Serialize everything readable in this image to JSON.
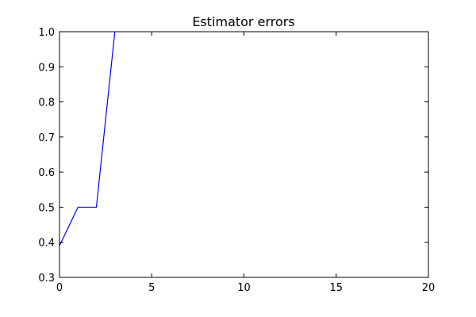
{
  "chart_data": {
    "type": "line",
    "title": "Estimator errors",
    "xlabel": "",
    "ylabel": "",
    "xlim": [
      0,
      20
    ],
    "ylim": [
      0.3,
      1.0
    ],
    "xticks": [
      0,
      5,
      10,
      15,
      20
    ],
    "xtick_labels": [
      "0",
      "5",
      "10",
      "15",
      "20"
    ],
    "yticks": [
      0.3,
      0.4,
      0.5,
      0.6,
      0.7,
      0.8,
      0.9,
      1.0
    ],
    "ytick_labels": [
      "0.3",
      "0.4",
      "0.5",
      "0.6",
      "0.7",
      "0.8",
      "0.9",
      "1.0"
    ],
    "grid": false,
    "legend": "none",
    "series": [
      {
        "color": "#0000ff",
        "x": [
          0,
          1,
          2,
          3
        ],
        "y": [
          0.39,
          0.5,
          0.5,
          1.0
        ]
      }
    ]
  }
}
